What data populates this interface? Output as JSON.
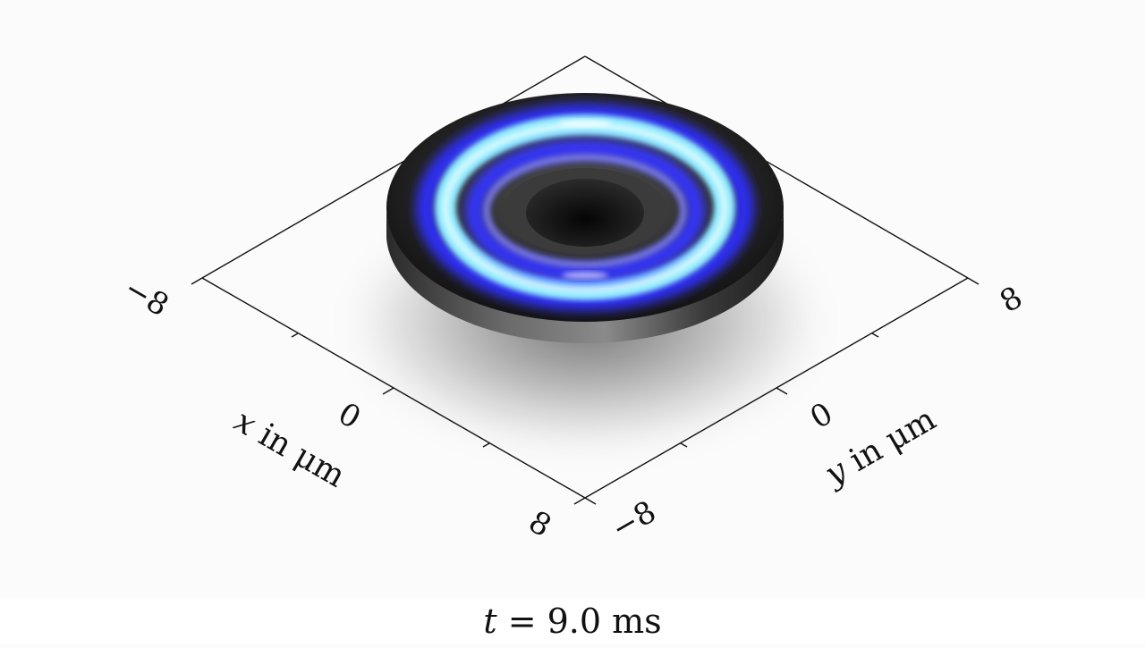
{
  "axes": {
    "x": {
      "ticks": [
        "−8",
        "0",
        "8"
      ],
      "label_var": "x",
      "label_rest": " in μm"
    },
    "y": {
      "ticks": [
        "−8",
        "0",
        "8"
      ],
      "label_var": "y",
      "label_rest": " in μm"
    }
  },
  "time": {
    "var": "t",
    "rest": " = 9.0 ms"
  },
  "colors": {
    "background": "#fbfbfb",
    "ring_outer_dark": "#1a1a1a",
    "ring_glow_blue": "#3a3aff",
    "ring_glow_cyan": "#aef4ff"
  }
}
